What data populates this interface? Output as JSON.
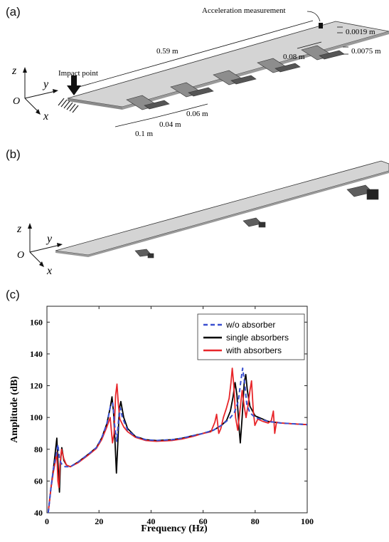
{
  "figure_a": {
    "panel_label": "(a)",
    "annotations": {
      "acceleration": "Acceleration measurement",
      "impact": "Impact point",
      "length": "0.59 m",
      "thickness": "0.0019 m",
      "absorber_thickness": "0.0075 m",
      "spacing_a": "0.08 m",
      "spacing_b": "0.06 m",
      "spacing_c": "0.04 m",
      "spacing_d": "0.1 m"
    },
    "axes": {
      "z": "z",
      "y": "y",
      "x": "x",
      "origin": "O"
    }
  },
  "figure_b": {
    "panel_label": "(b)",
    "axes": {
      "z": "z",
      "y": "y",
      "x": "x",
      "origin": "O"
    }
  },
  "figure_c": {
    "panel_label": "(c)",
    "chart_data": {
      "type": "line",
      "title": "",
      "xlabel": "Frequency (Hz)",
      "ylabel": "Amplitude (dB)",
      "xlim": [
        0,
        100
      ],
      "ylim": [
        40,
        170
      ],
      "x_ticks": [
        0,
        20,
        40,
        60,
        80,
        100
      ],
      "y_ticks": [
        40,
        60,
        80,
        100,
        120,
        140,
        160
      ],
      "grid": false,
      "legend_position": "top-right",
      "series": [
        {
          "name": "w/o absorber",
          "color": "#3a4fd0",
          "style": "dashed",
          "points": [
            [
              0.5,
              40
            ],
            [
              1.5,
              55
            ],
            [
              2.5,
              68
            ],
            [
              3.5,
              76
            ],
            [
              4.2,
              83
            ],
            [
              4.8,
              74
            ],
            [
              5.5,
              71
            ],
            [
              7,
              69
            ],
            [
              9,
              69
            ],
            [
              12,
              72
            ],
            [
              16,
              77
            ],
            [
              19,
              81
            ],
            [
              21,
              87
            ],
            [
              23,
              96
            ],
            [
              24.5,
              108
            ],
            [
              25.3,
              109
            ],
            [
              26,
              95
            ],
            [
              26.8,
              85
            ],
            [
              27.5,
              98
            ],
            [
              28.2,
              106
            ],
            [
              29,
              100
            ],
            [
              31,
              92
            ],
            [
              34,
              88
            ],
            [
              38,
              86
            ],
            [
              42,
              85.5
            ],
            [
              48,
              86
            ],
            [
              52,
              87
            ],
            [
              56,
              88.5
            ],
            [
              60,
              90
            ],
            [
              64,
              92
            ],
            [
              67,
              95
            ],
            [
              70,
              99
            ],
            [
              72,
              103
            ],
            [
              73.5,
              110
            ],
            [
              74.5,
              123
            ],
            [
              75.2,
              131
            ],
            [
              76,
              121
            ],
            [
              76.8,
              108
            ],
            [
              78,
              103
            ],
            [
              80,
              100
            ],
            [
              85,
              97.5
            ],
            [
              90,
              96.5
            ],
            [
              95,
              96
            ],
            [
              100,
              95.5
            ]
          ]
        },
        {
          "name": "single absorbers",
          "color": "#000000",
          "style": "solid",
          "points": [
            [
              0.5,
              40
            ],
            [
              1.5,
              55
            ],
            [
              2.5,
              68
            ],
            [
              3.2,
              78
            ],
            [
              3.8,
              87
            ],
            [
              4.3,
              70
            ],
            [
              4.8,
              53
            ],
            [
              5.2,
              72
            ],
            [
              5.7,
              81
            ],
            [
              6.5,
              73
            ],
            [
              7.5,
              70
            ],
            [
              9,
              69
            ],
            [
              12,
              72
            ],
            [
              16,
              77
            ],
            [
              19,
              81
            ],
            [
              21,
              87
            ],
            [
              23,
              96
            ],
            [
              24.3,
              106
            ],
            [
              25,
              113
            ],
            [
              25.6,
              103
            ],
            [
              26.2,
              83
            ],
            [
              26.7,
              65
            ],
            [
              27.2,
              83
            ],
            [
              27.8,
              105
            ],
            [
              28.4,
              110
            ],
            [
              29.5,
              100
            ],
            [
              31,
              93
            ],
            [
              34,
              88
            ],
            [
              38,
              86
            ],
            [
              42,
              85.5
            ],
            [
              48,
              86
            ],
            [
              52,
              87
            ],
            [
              56,
              88.5
            ],
            [
              60,
              90
            ],
            [
              64,
              92
            ],
            [
              67,
              95
            ],
            [
              69,
              98
            ],
            [
              70.5,
              104
            ],
            [
              71.5,
              113
            ],
            [
              72.3,
              122
            ],
            [
              73,
              114
            ],
            [
              73.7,
              96
            ],
            [
              74.3,
              84
            ],
            [
              75,
              100
            ],
            [
              75.8,
              122
            ],
            [
              76.4,
              127
            ],
            [
              77,
              117
            ],
            [
              78,
              107
            ],
            [
              80,
              101
            ],
            [
              85,
              97.5
            ],
            [
              90,
              96.5
            ],
            [
              95,
              96
            ],
            [
              100,
              95.5
            ]
          ]
        },
        {
          "name": "with absorbers",
          "color": "#e8262a",
          "style": "solid",
          "points": [
            [
              0.5,
              40
            ],
            [
              1.5,
              55
            ],
            [
              2.5,
              66
            ],
            [
              3.3,
              73
            ],
            [
              3.8,
              78
            ],
            [
              4.2,
              60
            ],
            [
              4.6,
              56
            ],
            [
              5,
              70
            ],
            [
              5.6,
              80
            ],
            [
              6.5,
              74
            ],
            [
              7.5,
              70
            ],
            [
              9,
              69
            ],
            [
              12,
              71.5
            ],
            [
              16,
              76.5
            ],
            [
              19,
              80.5
            ],
            [
              21,
              86
            ],
            [
              23,
              94
            ],
            [
              24.3,
              100
            ],
            [
              25.2,
              84
            ],
            [
              25.8,
              90
            ],
            [
              26.4,
              114
            ],
            [
              26.9,
              121
            ],
            [
              27.4,
              109
            ],
            [
              28,
              99
            ],
            [
              29.5,
              94
            ],
            [
              31,
              91
            ],
            [
              34,
              87.5
            ],
            [
              38,
              85.5
            ],
            [
              42,
              85
            ],
            [
              48,
              85.5
            ],
            [
              52,
              86.5
            ],
            [
              56,
              88
            ],
            [
              60,
              90
            ],
            [
              63,
              91
            ],
            [
              64.5,
              97
            ],
            [
              65.2,
              102
            ],
            [
              66,
              90
            ],
            [
              66.8,
              93
            ],
            [
              67.8,
              100
            ],
            [
              69,
              106
            ],
            [
              70,
              112
            ],
            [
              70.7,
              122
            ],
            [
              71.2,
              131
            ],
            [
              71.8,
              120
            ],
            [
              72.5,
              100
            ],
            [
              73.3,
              92
            ],
            [
              74.2,
              105
            ],
            [
              75,
              117
            ],
            [
              75.8,
              107
            ],
            [
              76.5,
              100
            ],
            [
              77.3,
              108
            ],
            [
              78,
              117
            ],
            [
              78.6,
              123
            ],
            [
              79.3,
              104
            ],
            [
              79.9,
              95
            ],
            [
              81,
              99
            ],
            [
              83,
              97.5
            ],
            [
              85,
              96.5
            ],
            [
              86.2,
              98
            ],
            [
              87,
              104
            ],
            [
              87.5,
              90
            ],
            [
              88.2,
              97
            ],
            [
              90,
              96.5
            ],
            [
              95,
              96
            ],
            [
              100,
              95.5
            ]
          ]
        }
      ]
    }
  }
}
